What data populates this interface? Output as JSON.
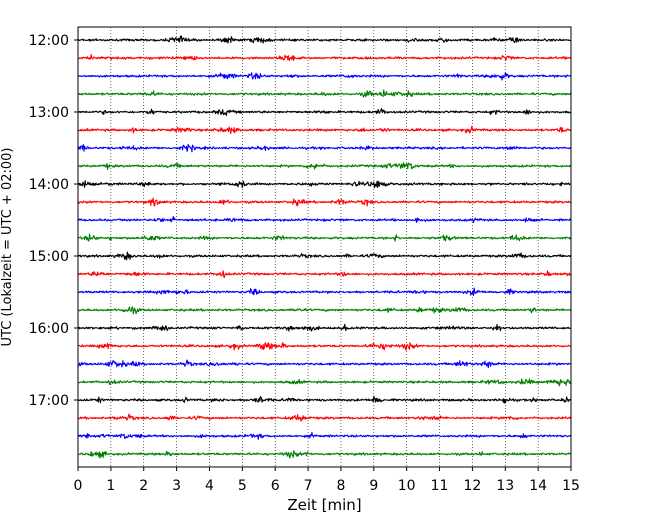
{
  "chart_data": {
    "type": "line",
    "title": "",
    "xlabel": "Zeit  [min]",
    "ylabel": "UTC (Lokalzeit = UTC + 02:00)",
    "xlim": [
      0,
      15
    ],
    "x_ticks": [
      "0",
      "1",
      "2",
      "3",
      "4",
      "5",
      "6",
      "7",
      "8",
      "9",
      "10",
      "11",
      "12",
      "13",
      "14",
      "15"
    ],
    "y_ticks": [
      {
        "label": "12:00",
        "trace_index": 0
      },
      {
        "label": "13:00",
        "trace_index": 4
      },
      {
        "label": "14:00",
        "trace_index": 8
      },
      {
        "label": "15:00",
        "trace_index": 12
      },
      {
        "label": "16:00",
        "trace_index": 16
      },
      {
        "label": "17:00",
        "trace_index": 20
      }
    ],
    "grid": "vertical dotted lines at each minute",
    "trace_interval_min": 15,
    "trace_count": 24,
    "trace_colors": [
      "#000000",
      "#ff0000",
      "#0000ff",
      "#008000"
    ],
    "traces": [
      {
        "start": "12:00",
        "color": "#000000"
      },
      {
        "start": "12:15",
        "color": "#ff0000"
      },
      {
        "start": "12:30",
        "color": "#0000ff"
      },
      {
        "start": "12:45",
        "color": "#008000"
      },
      {
        "start": "13:00",
        "color": "#000000"
      },
      {
        "start": "13:15",
        "color": "#ff0000"
      },
      {
        "start": "13:30",
        "color": "#0000ff"
      },
      {
        "start": "13:45",
        "color": "#008000"
      },
      {
        "start": "14:00",
        "color": "#000000"
      },
      {
        "start": "14:15",
        "color": "#ff0000"
      },
      {
        "start": "14:30",
        "color": "#0000ff"
      },
      {
        "start": "14:45",
        "color": "#008000"
      },
      {
        "start": "15:00",
        "color": "#000000"
      },
      {
        "start": "15:15",
        "color": "#ff0000"
      },
      {
        "start": "15:30",
        "color": "#0000ff"
      },
      {
        "start": "15:45",
        "color": "#008000"
      },
      {
        "start": "16:00",
        "color": "#000000"
      },
      {
        "start": "16:15",
        "color": "#ff0000"
      },
      {
        "start": "16:30",
        "color": "#0000ff"
      },
      {
        "start": "16:45",
        "color": "#008000"
      },
      {
        "start": "17:00",
        "color": "#000000"
      },
      {
        "start": "17:15",
        "color": "#ff0000"
      },
      {
        "start": "17:30",
        "color": "#0000ff"
      },
      {
        "start": "17:45",
        "color": "#008000"
      }
    ]
  }
}
